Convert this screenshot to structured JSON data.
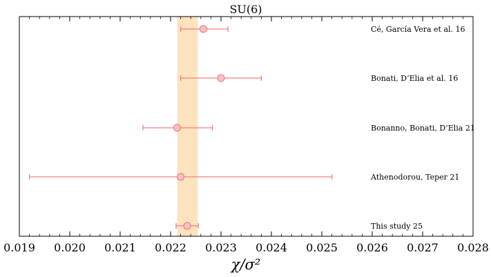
{
  "chart_data": {
    "type": "scatter",
    "title": "SU(6)",
    "xlabel": "χ/σ²",
    "xlim": [
      0.019,
      0.028
    ],
    "xticks": [
      "0.019",
      "0.020",
      "0.021",
      "0.022",
      "0.023",
      "0.024",
      "0.025",
      "0.026",
      "0.027",
      "0.028"
    ],
    "points": [
      {
        "label": "Cé, García Vera et al. 16",
        "x": 0.02265,
        "err_low": 0.00045,
        "err_high": 0.00049
      },
      {
        "label": "Bonati, D’Elia et al. 16",
        "x": 0.023,
        "err_low": 0.0008,
        "err_high": 0.0008
      },
      {
        "label": "Bonanno, Bonati, D’Elia 21",
        "x": 0.02213,
        "err_low": 0.00068,
        "err_high": 0.0007
      },
      {
        "label": "Athenodorou, Teper 21",
        "x": 0.0222,
        "err_low": 0.003,
        "err_high": 0.003
      },
      {
        "label": "This study 25",
        "x": 0.02233,
        "err_low": 0.00022,
        "err_high": 0.00022
      }
    ],
    "band": {
      "xmin": 0.02213,
      "xmax": 0.02254,
      "color": "#fde3bd"
    },
    "marker_color": "#f08080",
    "marker_fill": "#f8c0c4"
  }
}
